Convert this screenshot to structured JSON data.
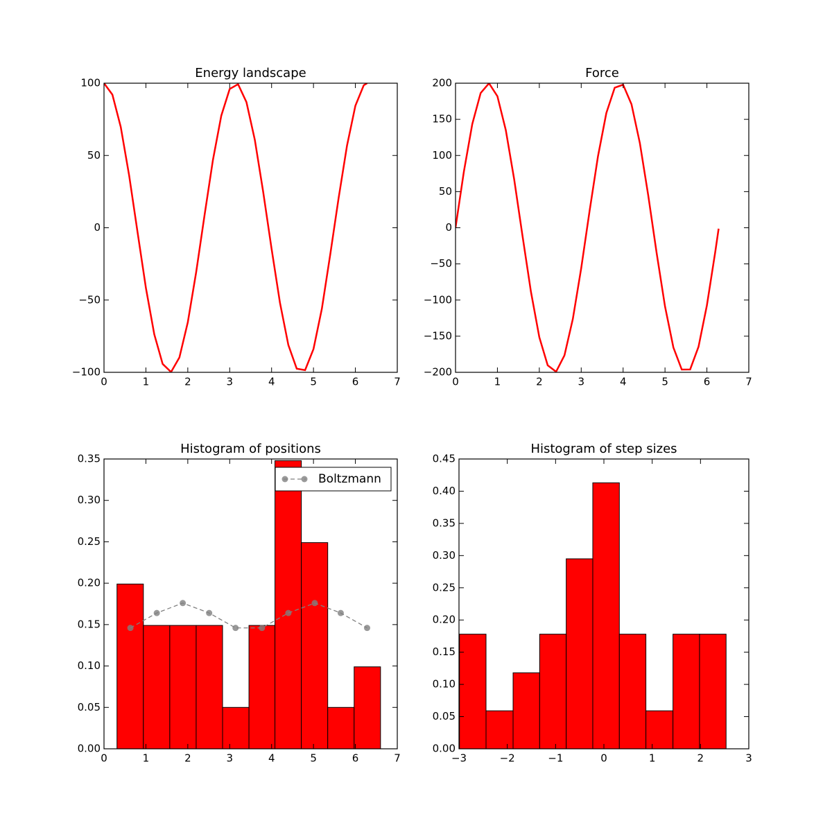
{
  "chart_data": [
    {
      "type": "line",
      "title": "Energy landscape",
      "color": "#ff0000",
      "x": [
        0,
        0.2,
        0.4,
        0.6,
        0.8,
        1.0,
        1.2,
        1.4,
        1.6,
        1.8,
        2.0,
        2.2,
        2.4,
        2.6,
        2.8,
        3.0,
        3.2,
        3.4,
        3.6,
        3.8,
        4.0,
        4.2,
        4.4,
        4.6,
        4.8,
        5.0,
        5.2,
        5.4,
        5.6,
        5.8,
        6.0,
        6.2,
        6.28
      ],
      "values": [
        100,
        92.1,
        69.7,
        36.2,
        -2.9,
        -41.6,
        -73.7,
        -94.2,
        -99.8,
        -89.7,
        -65.4,
        -30.7,
        8.7,
        46.9,
        77.6,
        96.0,
        99.3,
        86.9,
        60.8,
        24.7,
        -14.6,
        -51.9,
        -81.1,
        -97.5,
        -98.5,
        -83.9,
        -56.0,
        -18.5,
        20.6,
        56.8,
        84.4,
        98.6,
        100
      ],
      "xlim": [
        0,
        7
      ],
      "xticks": [
        0,
        1,
        2,
        3,
        4,
        5,
        6,
        7
      ],
      "ylim": [
        -100,
        100
      ],
      "yticks": [
        {
          "value": -100,
          "label": "−100"
        },
        {
          "value": -50,
          "label": "−50"
        },
        0,
        50,
        100
      ]
    },
    {
      "type": "line",
      "title": "Force",
      "color": "#ff0000",
      "x": [
        0,
        0.2,
        0.4,
        0.6,
        0.8,
        1.0,
        1.2,
        1.4,
        1.6,
        1.8,
        2.0,
        2.2,
        2.4,
        2.6,
        2.8,
        3.0,
        3.2,
        3.4,
        3.6,
        3.8,
        4.0,
        4.2,
        4.4,
        4.6,
        4.8,
        5.0,
        5.2,
        5.4,
        5.6,
        5.8,
        6.0,
        6.2,
        6.28
      ],
      "values": [
        0,
        77.9,
        143.5,
        186.4,
        199.9,
        181.9,
        135.1,
        67.0,
        -11.7,
        -88.5,
        -151.4,
        -190.3,
        -199.2,
        -176.6,
        -126.2,
        -55.9,
        23.3,
        98.8,
        158.8,
        193.8,
        197.9,
        170.9,
        117.1,
        44.7,
        -34.8,
        -108.8,
        -165.6,
        -196.2,
        -196.0,
        -164.6,
        -107.3,
        -33.2,
        -1.3
      ],
      "xlim": [
        0,
        7
      ],
      "xticks": [
        0,
        1,
        2,
        3,
        4,
        5,
        6,
        7
      ],
      "ylim": [
        -200,
        200
      ],
      "yticks": [
        {
          "value": -200,
          "label": "−200"
        },
        {
          "value": -150,
          "label": "−150"
        },
        {
          "value": -100,
          "label": "−100"
        },
        {
          "value": -50,
          "label": "−50"
        },
        0,
        50,
        100,
        150,
        200
      ]
    },
    {
      "type": "histogram",
      "title": "Histogram of positions",
      "color": "#ff0000",
      "bins": [
        0.31,
        0.94,
        1.57,
        2.2,
        2.83,
        3.46,
        4.08,
        4.71,
        5.34,
        5.97,
        6.6
      ],
      "values": [
        0.199,
        0.149,
        0.149,
        0.149,
        0.05,
        0.149,
        0.348,
        0.249,
        0.05,
        0.099
      ],
      "series": [
        {
          "name": "Boltzmann",
          "color": "#808080",
          "x": [
            0.63,
            1.26,
            1.88,
            2.51,
            3.14,
            3.77,
            4.4,
            5.03,
            5.65,
            6.28
          ],
          "values": [
            0.146,
            0.164,
            0.176,
            0.164,
            0.146,
            0.146,
            0.164,
            0.176,
            0.164,
            0.146
          ]
        }
      ],
      "legend": "upper right",
      "xlim": [
        0,
        7
      ],
      "xticks": [
        0,
        1,
        2,
        3,
        4,
        5,
        6,
        7
      ],
      "ylim": [
        0,
        0.35
      ],
      "yticks": [
        {
          "value": 0,
          "label": "0.00"
        },
        {
          "value": 0.05,
          "label": "0.05"
        },
        {
          "value": 0.1,
          "label": "0.10"
        },
        {
          "value": 0.15,
          "label": "0.15"
        },
        {
          "value": 0.2,
          "label": "0.20"
        },
        {
          "value": 0.25,
          "label": "0.25"
        },
        {
          "value": 0.3,
          "label": "0.30"
        },
        {
          "value": 0.35,
          "label": "0.35"
        }
      ]
    },
    {
      "type": "histogram",
      "title": "Histogram of step sizes",
      "color": "#ff0000",
      "bins": [
        -2.99,
        -2.44,
        -1.88,
        -1.33,
        -0.78,
        -0.23,
        0.32,
        0.87,
        1.43,
        1.98,
        2.53
      ],
      "values": [
        0.178,
        0.059,
        0.118,
        0.178,
        0.295,
        0.413,
        0.178,
        0.059,
        0.178,
        0.178
      ],
      "xlim": [
        -3,
        3
      ],
      "xticks": [
        {
          "value": -3,
          "label": "−3"
        },
        {
          "value": -2,
          "label": "−2"
        },
        {
          "value": -1,
          "label": "−1"
        },
        0,
        1,
        2,
        3
      ],
      "ylim": [
        0,
        0.45
      ],
      "yticks": [
        {
          "value": 0,
          "label": "0.00"
        },
        {
          "value": 0.05,
          "label": "0.05"
        },
        {
          "value": 0.1,
          "label": "0.10"
        },
        {
          "value": 0.15,
          "label": "0.15"
        },
        {
          "value": 0.2,
          "label": "0.20"
        },
        {
          "value": 0.25,
          "label": "0.25"
        },
        {
          "value": 0.3,
          "label": "0.30"
        },
        {
          "value": 0.35,
          "label": "0.35"
        },
        {
          "value": 0.4,
          "label": "0.40"
        },
        {
          "value": 0.45,
          "label": "0.45"
        }
      ]
    }
  ]
}
